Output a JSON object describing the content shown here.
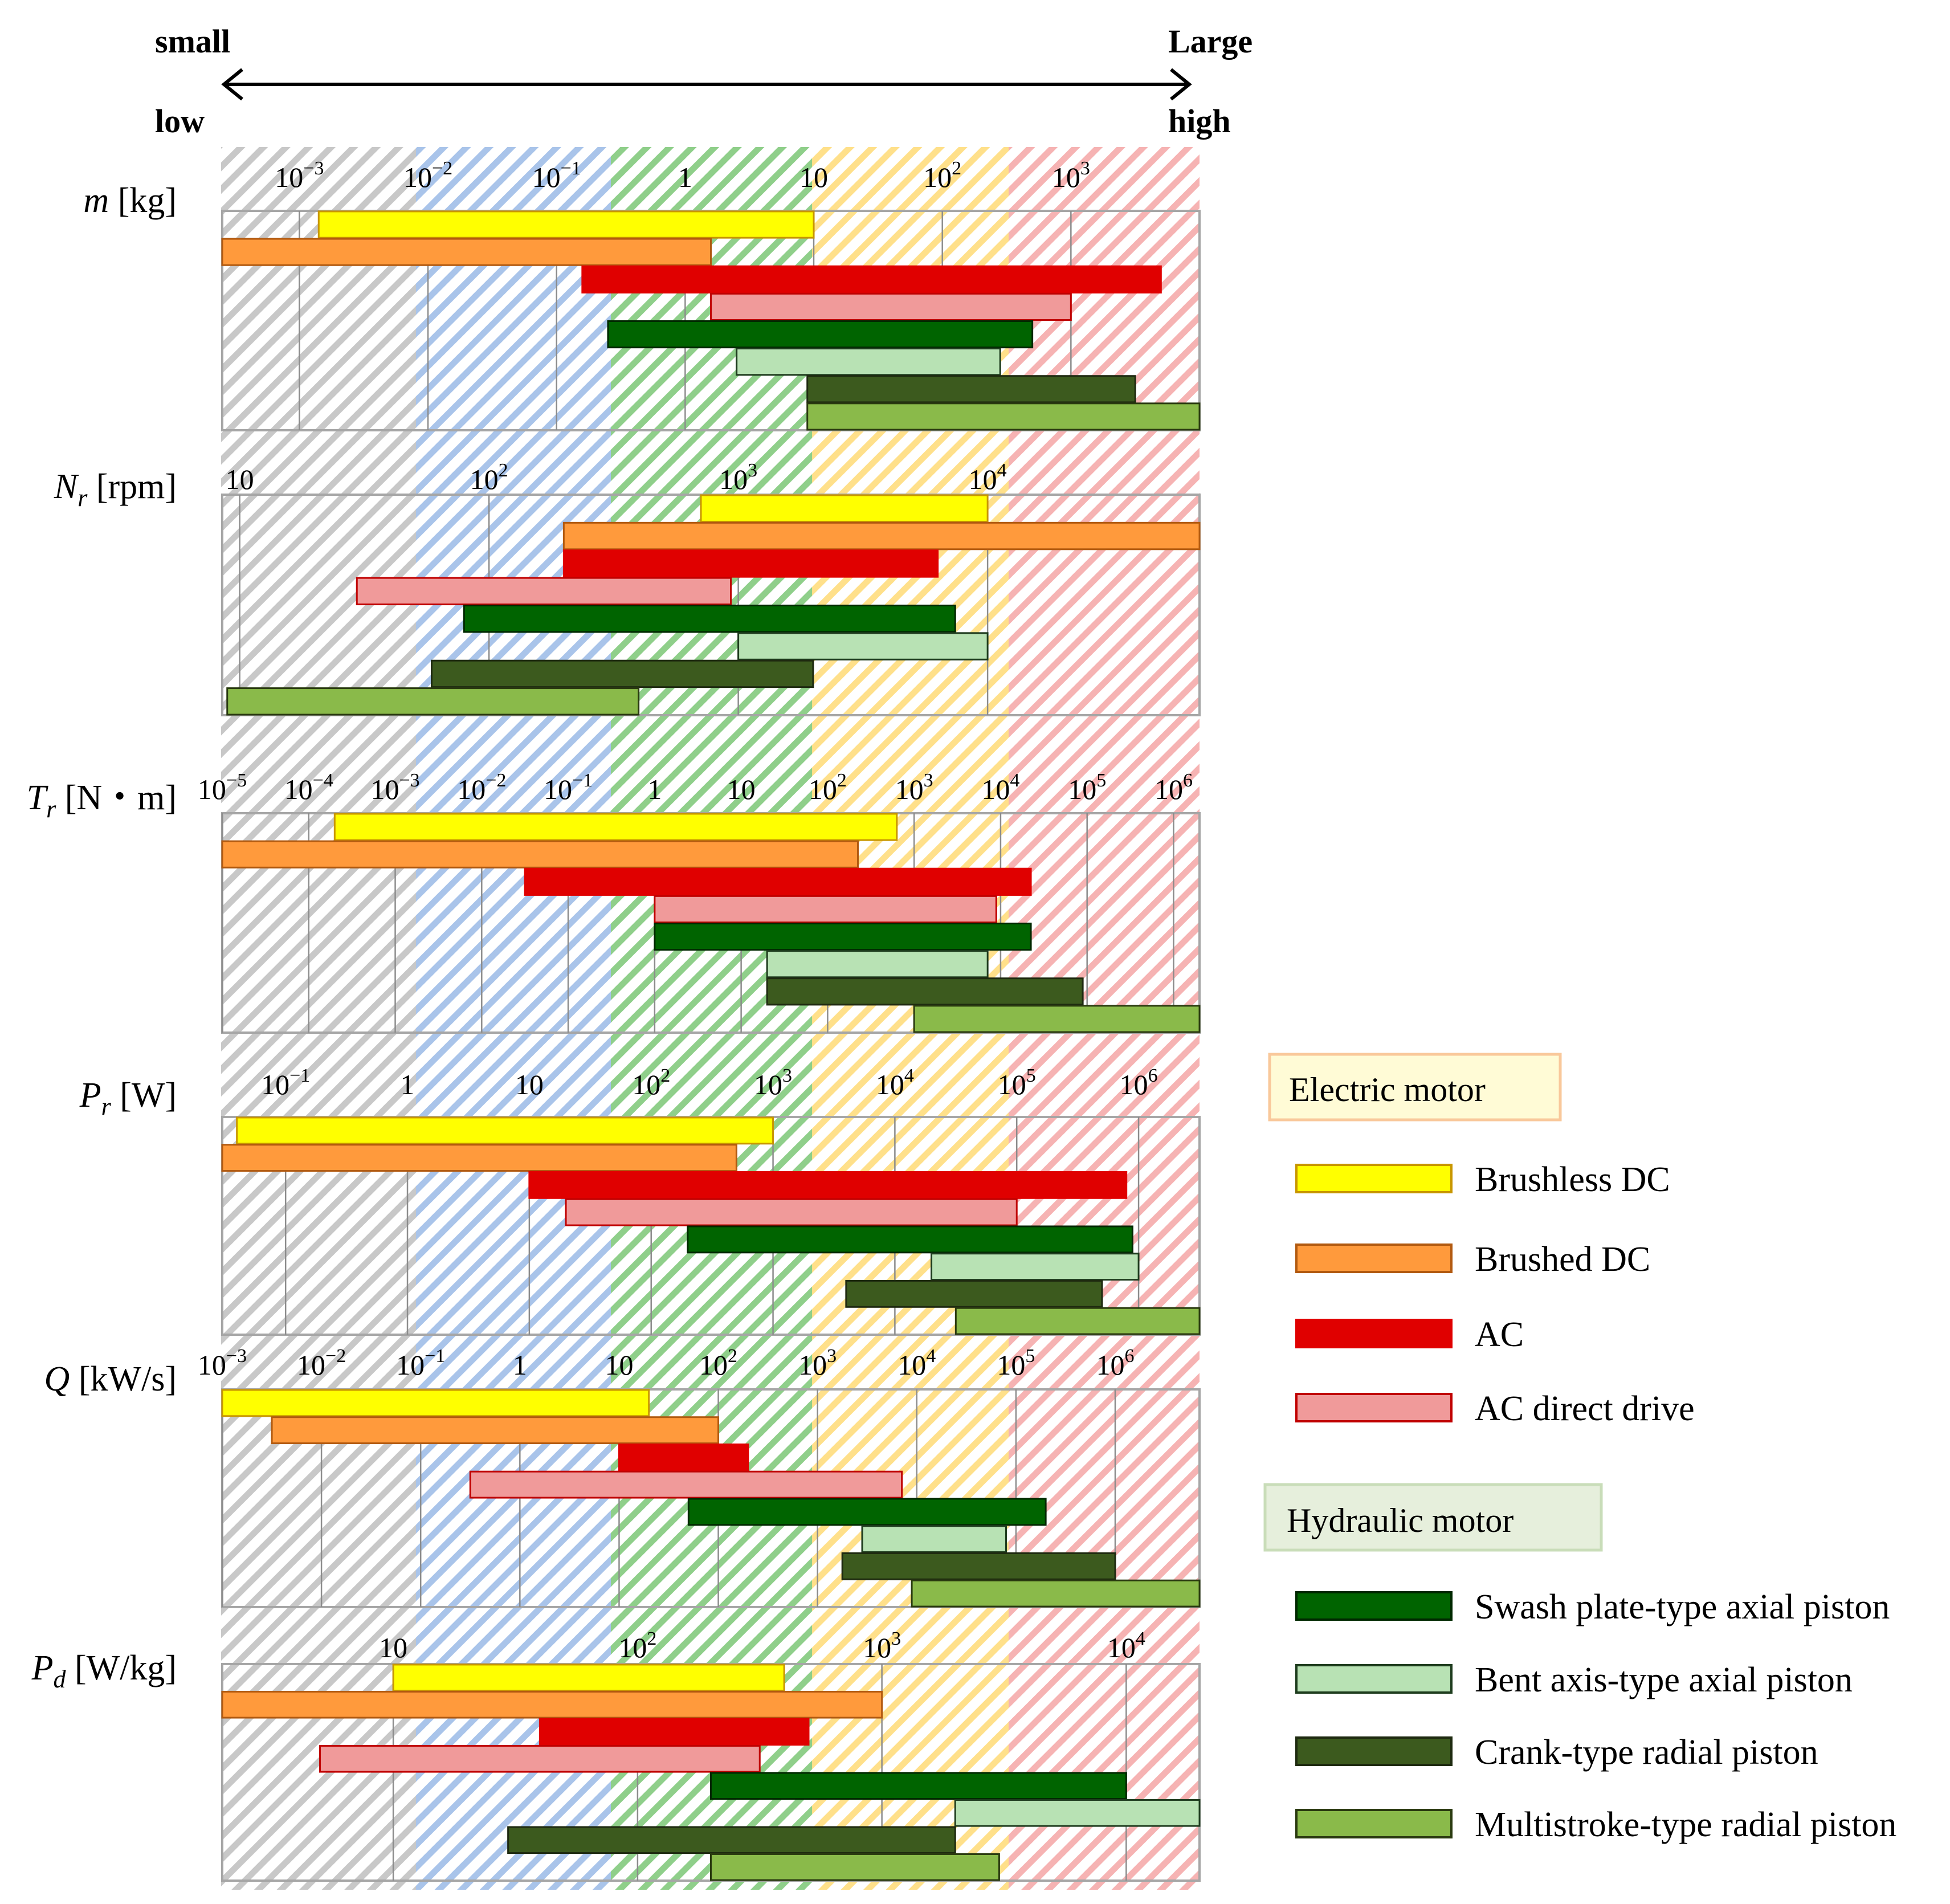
{
  "header": {
    "left_top": "small",
    "left_bottom": "low",
    "right_top": "Large",
    "right_bottom": "high"
  },
  "colors": {
    "band_gray": "#c8c8c8",
    "band_blue": "#a9c4ea",
    "band_green": "#8fcf8a",
    "band_yellow": "#ffe08a",
    "band_red": "#f6b3b3",
    "electric_legend_bg": "#fffbd6",
    "electric_legend_border": "#f9c89b",
    "hydraulic_legend_bg": "#e6efdc",
    "hydraulic_legend_border": "#c9ddb9"
  },
  "legend": {
    "electric_title": "Electric motor",
    "hydraulic_title": "Hydraulic motor",
    "electric": [
      {
        "key": "bldc",
        "label": "Brushless DC",
        "fill": "#ffff00",
        "stroke": "#c89600"
      },
      {
        "key": "bdc",
        "label": "Brushed DC",
        "fill": "#ff9a3c",
        "stroke": "#b25a10"
      },
      {
        "key": "ac",
        "label": "AC",
        "fill": "#e00000",
        "stroke": "#e00000"
      },
      {
        "key": "acdd",
        "label": "AC direct drive",
        "fill": "#f09a9a",
        "stroke": "#c00000"
      }
    ],
    "hydraulic": [
      {
        "key": "swash",
        "label": "Swash plate-type axial piston",
        "fill": "#006400",
        "stroke": "#002800"
      },
      {
        "key": "bent",
        "label": "Bent axis-type axial piston",
        "fill": "#b8e2b4",
        "stroke": "#1e3c1e"
      },
      {
        "key": "crank",
        "label": "Crank-type radial piston",
        "fill": "#3c5a1e",
        "stroke": "#1e2a10"
      },
      {
        "key": "multi",
        "label": "Multistroke-type radial piston",
        "fill": "#8aba4a",
        "stroke": "#2a3a10"
      }
    ]
  },
  "chart_data": [
    {
      "type": "bar",
      "orientation": "horizontal-range",
      "symbol": "m",
      "unit": "[kg]",
      "xscale": "log10",
      "xlim": [
        -3.6,
        4.0
      ],
      "ticks": [
        {
          "value": -3,
          "base": "10",
          "exp": "−3"
        },
        {
          "value": -2,
          "base": "10",
          "exp": "−2"
        },
        {
          "value": -1,
          "base": "10",
          "exp": "−1"
        },
        {
          "value": 0,
          "base": "1",
          "exp": ""
        },
        {
          "value": 1,
          "base": "10",
          "exp": ""
        },
        {
          "value": 2,
          "base": "10",
          "exp": "2"
        },
        {
          "value": 3,
          "base": "10",
          "exp": "3"
        }
      ],
      "ranges": [
        {
          "series": "bldc",
          "from": -2.85,
          "to": 1.0
        },
        {
          "series": "bdc",
          "from": -3.6,
          "to": 0.2
        },
        {
          "series": "ac",
          "from": -0.8,
          "to": 3.7
        },
        {
          "series": "acdd",
          "from": 0.2,
          "to": 3.0
        },
        {
          "series": "swash",
          "from": -0.6,
          "to": 2.7
        },
        {
          "series": "bent",
          "from": 0.4,
          "to": 2.45
        },
        {
          "series": "crank",
          "from": 0.95,
          "to": 3.5
        },
        {
          "series": "multi",
          "from": 0.95,
          "to": 4.0
        }
      ]
    },
    {
      "type": "bar",
      "orientation": "horizontal-range",
      "symbol": "N",
      "sub": "r",
      "unit": "[rpm]",
      "xscale": "log10",
      "xlim": [
        0.93,
        4.85
      ],
      "ticks": [
        {
          "value": 1,
          "base": "10",
          "exp": ""
        },
        {
          "value": 2,
          "base": "10",
          "exp": "2"
        },
        {
          "value": 3,
          "base": "10",
          "exp": "3"
        },
        {
          "value": 4,
          "base": "10",
          "exp": "4"
        }
      ],
      "ranges": [
        {
          "series": "bldc",
          "from": 2.85,
          "to": 4.0
        },
        {
          "series": "bdc",
          "from": 2.3,
          "to": 4.85
        },
        {
          "series": "ac",
          "from": 2.3,
          "to": 3.8
        },
        {
          "series": "acdd",
          "from": 1.47,
          "to": 2.97
        },
        {
          "series": "swash",
          "from": 1.9,
          "to": 3.87
        },
        {
          "series": "bent",
          "from": 3.0,
          "to": 4.0
        },
        {
          "series": "crank",
          "from": 1.77,
          "to": 3.3
        },
        {
          "series": "multi",
          "from": 0.95,
          "to": 2.6
        }
      ]
    },
    {
      "type": "bar",
      "orientation": "horizontal-range",
      "symbol": "T",
      "sub": "r",
      "unit": "[N・m]",
      "xscale": "log10",
      "xlim": [
        -5,
        6.3
      ],
      "ticks": [
        {
          "value": -5,
          "base": "10",
          "exp": "−5"
        },
        {
          "value": -4,
          "base": "10",
          "exp": "−4"
        },
        {
          "value": -3,
          "base": "10",
          "exp": "−3"
        },
        {
          "value": -2,
          "base": "10",
          "exp": "−2"
        },
        {
          "value": -1,
          "base": "10",
          "exp": "−1"
        },
        {
          "value": 0,
          "base": "1",
          "exp": ""
        },
        {
          "value": 1,
          "base": "10",
          "exp": ""
        },
        {
          "value": 2,
          "base": "10",
          "exp": "2"
        },
        {
          "value": 3,
          "base": "10",
          "exp": "3"
        },
        {
          "value": 4,
          "base": "10",
          "exp": "4"
        },
        {
          "value": 5,
          "base": "10",
          "exp": "5"
        },
        {
          "value": 6,
          "base": "10",
          "exp": "6"
        }
      ],
      "ranges": [
        {
          "series": "bldc",
          "from": -3.7,
          "to": 2.8
        },
        {
          "series": "bdc",
          "from": -5.0,
          "to": 2.35
        },
        {
          "series": "ac",
          "from": -1.5,
          "to": 4.35
        },
        {
          "series": "acdd",
          "from": 0.0,
          "to": 3.95
        },
        {
          "series": "swash",
          "from": 0.0,
          "to": 4.35
        },
        {
          "series": "bent",
          "from": 1.3,
          "to": 3.85
        },
        {
          "series": "crank",
          "from": 1.3,
          "to": 4.95
        },
        {
          "series": "multi",
          "from": 3.0,
          "to": 6.3
        }
      ]
    },
    {
      "type": "bar",
      "orientation": "horizontal-range",
      "symbol": "P",
      "sub": "r",
      "unit": "[W]",
      "xscale": "log10",
      "xlim": [
        -1.52,
        6.5
      ],
      "ticks": [
        {
          "value": -1,
          "base": "10",
          "exp": "−1"
        },
        {
          "value": 0,
          "base": "1",
          "exp": ""
        },
        {
          "value": 1,
          "base": "10",
          "exp": ""
        },
        {
          "value": 2,
          "base": "10",
          "exp": "2"
        },
        {
          "value": 3,
          "base": "10",
          "exp": "3"
        },
        {
          "value": 4,
          "base": "10",
          "exp": "4"
        },
        {
          "value": 5,
          "base": "10",
          "exp": "5"
        },
        {
          "value": 6,
          "base": "10",
          "exp": "6"
        }
      ],
      "ranges": [
        {
          "series": "bldc",
          "from": -1.4,
          "to": 3.0
        },
        {
          "series": "bdc",
          "from": -1.52,
          "to": 2.7
        },
        {
          "series": "ac",
          "from": 1.0,
          "to": 5.9
        },
        {
          "series": "acdd",
          "from": 1.3,
          "to": 5.0
        },
        {
          "series": "swash",
          "from": 2.3,
          "to": 5.95
        },
        {
          "series": "bent",
          "from": 4.3,
          "to": 6.0
        },
        {
          "series": "crank",
          "from": 3.6,
          "to": 5.7
        },
        {
          "series": "multi",
          "from": 4.5,
          "to": 6.5
        }
      ]
    },
    {
      "type": "bar",
      "orientation": "horizontal-range",
      "symbol": "Q",
      "unit": "[kW/s]",
      "xscale": "log10",
      "xlim": [
        -3,
        6.85
      ],
      "ticks": [
        {
          "value": -3,
          "base": "10",
          "exp": "−3"
        },
        {
          "value": -2,
          "base": "10",
          "exp": "−2"
        },
        {
          "value": -1,
          "base": "10",
          "exp": "−1"
        },
        {
          "value": 0,
          "base": "1",
          "exp": ""
        },
        {
          "value": 1,
          "base": "10",
          "exp": ""
        },
        {
          "value": 2,
          "base": "10",
          "exp": "2"
        },
        {
          "value": 3,
          "base": "10",
          "exp": "3"
        },
        {
          "value": 4,
          "base": "10",
          "exp": "4"
        },
        {
          "value": 5,
          "base": "10",
          "exp": "5"
        },
        {
          "value": 6,
          "base": "10",
          "exp": "6"
        }
      ],
      "ranges": [
        {
          "series": "bldc",
          "from": -3.0,
          "to": 1.3
        },
        {
          "series": "bdc",
          "from": -2.5,
          "to": 2.0
        },
        {
          "series": "ac",
          "from": 1.0,
          "to": 2.3
        },
        {
          "series": "acdd",
          "from": -0.5,
          "to": 3.85
        },
        {
          "series": "swash",
          "from": 1.7,
          "to": 5.3
        },
        {
          "series": "bent",
          "from": 3.45,
          "to": 4.9
        },
        {
          "series": "crank",
          "from": 3.25,
          "to": 6.0
        },
        {
          "series": "multi",
          "from": 3.95,
          "to": 6.85
        }
      ]
    },
    {
      "type": "bar",
      "orientation": "horizontal-range",
      "symbol": "P",
      "sub": "d",
      "unit": "[W/kg]",
      "xscale": "log10",
      "xlim": [
        0.3,
        4.3
      ],
      "ticks": [
        {
          "value": 1,
          "base": "10",
          "exp": ""
        },
        {
          "value": 2,
          "base": "10",
          "exp": "2"
        },
        {
          "value": 3,
          "base": "10",
          "exp": "3"
        },
        {
          "value": 4,
          "base": "10",
          "exp": "4"
        }
      ],
      "ranges": [
        {
          "series": "bldc",
          "from": 1.0,
          "to": 2.6
        },
        {
          "series": "bdc",
          "from": 0.3,
          "to": 3.0
        },
        {
          "series": "ac",
          "from": 1.6,
          "to": 2.7
        },
        {
          "series": "acdd",
          "from": 0.7,
          "to": 2.5
        },
        {
          "series": "swash",
          "from": 2.3,
          "to": 4.0
        },
        {
          "series": "bent",
          "from": 3.3,
          "to": 4.3
        },
        {
          "series": "crank",
          "from": 1.47,
          "to": 3.3
        },
        {
          "series": "multi",
          "from": 2.3,
          "to": 3.48
        }
      ]
    }
  ]
}
